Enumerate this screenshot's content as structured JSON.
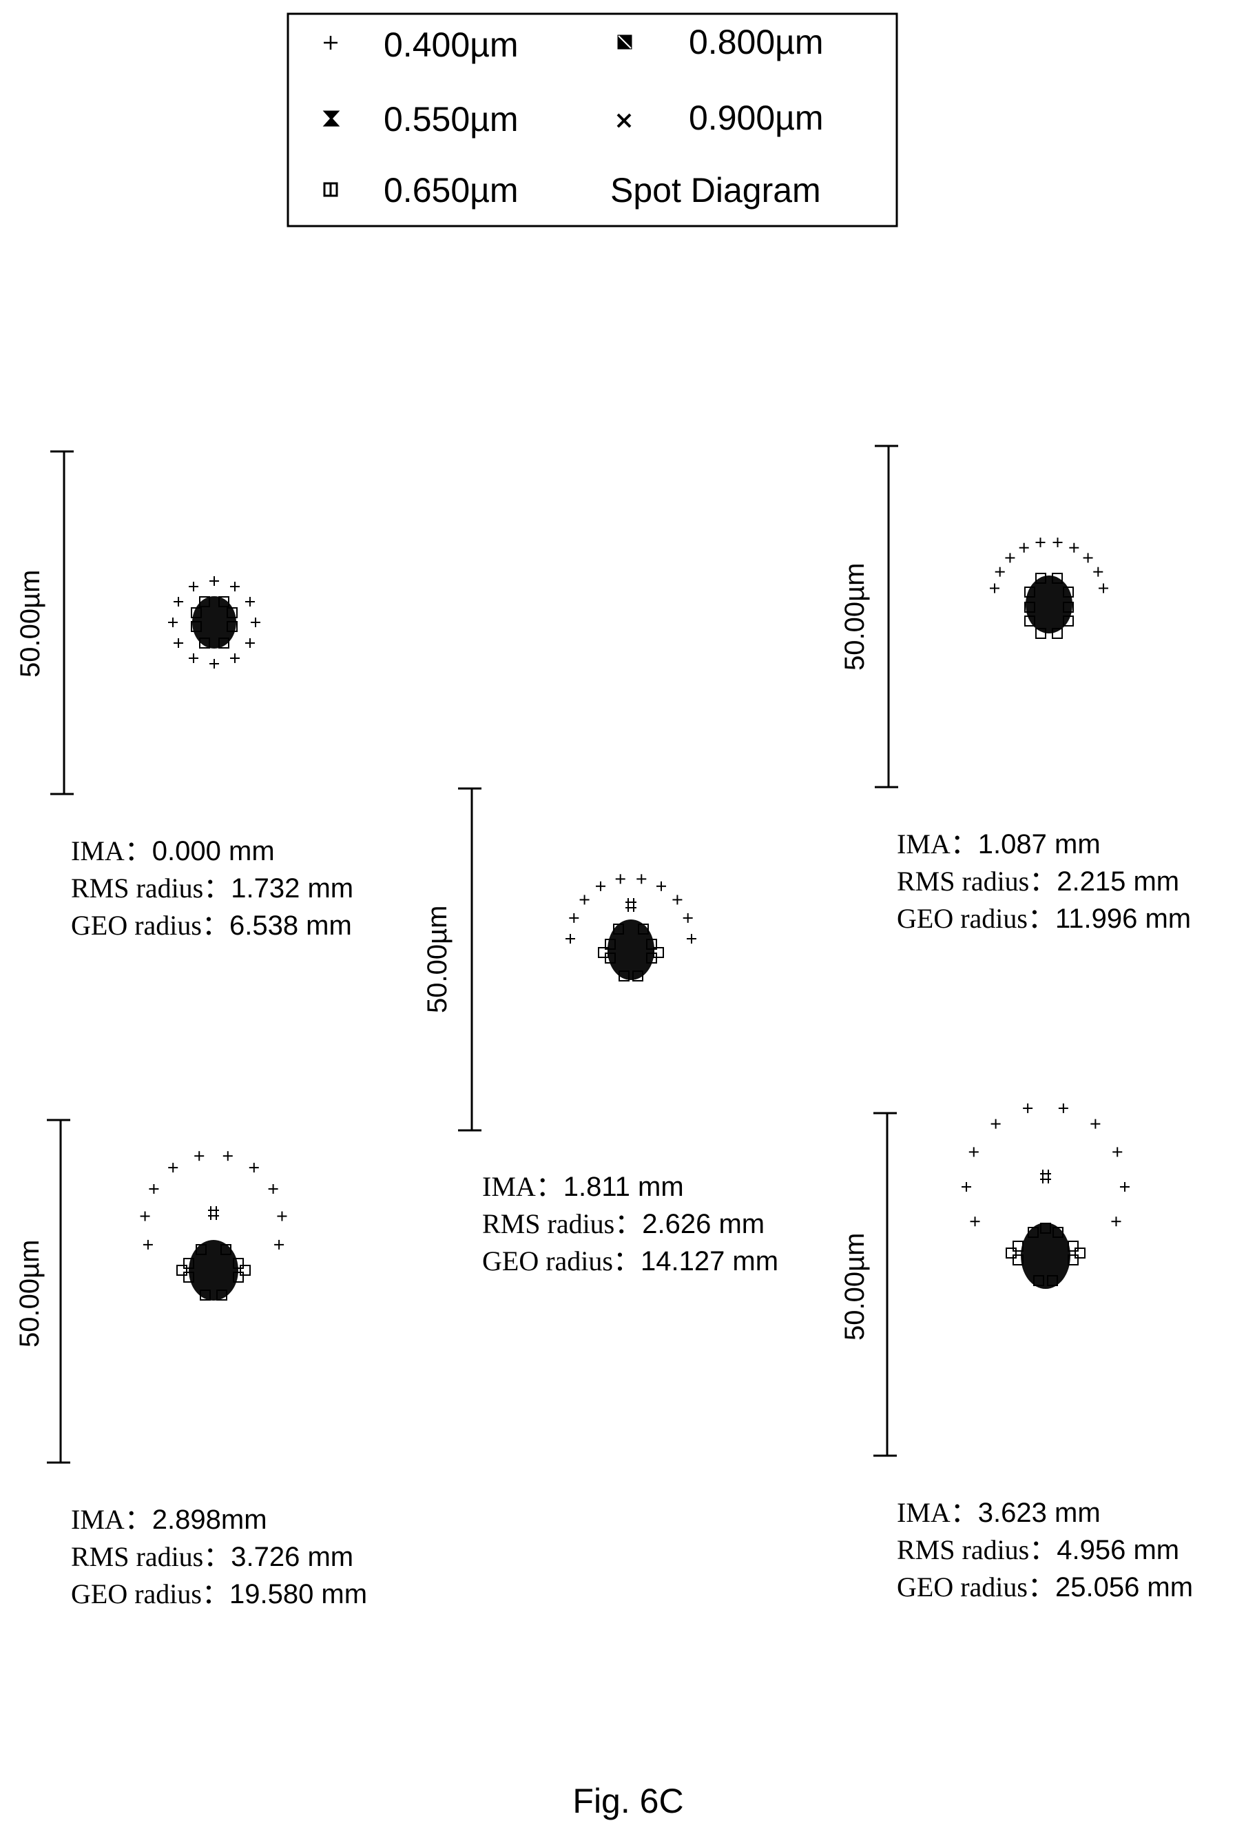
{
  "legend": {
    "entries": [
      {
        "label": "0.400µm",
        "marker": "plus-marker"
      },
      {
        "label": "0.550µm",
        "marker": "hourglass-marker"
      },
      {
        "label": "0.650µm",
        "marker": "square-marker"
      },
      {
        "label": "0.800µm",
        "marker": "filled-square-marker"
      },
      {
        "label": "0.900µm",
        "marker": "x-marker"
      }
    ],
    "title": "Spot Diagram"
  },
  "panels": [
    {
      "scale_label": "50.00µm",
      "ima_key": "IMA",
      "ima_value": "0.000 mm",
      "rms_key": "RMS radius",
      "rms_value": "1.732 mm",
      "geo_key": "GEO radius",
      "geo_value": "6.538 mm"
    },
    {
      "scale_label": "50.00µm",
      "ima_key": "IMA",
      "ima_value": "1.087 mm",
      "rms_key": "RMS radius",
      "rms_value": "2.215 mm",
      "geo_key": "GEO radius",
      "geo_value": "11.996 mm"
    },
    {
      "scale_label": "50.00µm",
      "ima_key": "IMA",
      "ima_value": "1.811 mm",
      "rms_key": "RMS radius",
      "rms_value": "2.626 mm",
      "geo_key": "GEO radius",
      "geo_value": "14.127 mm"
    },
    {
      "scale_label": "50.00µm",
      "ima_key": "IMA",
      "ima_value": "2.898mm",
      "rms_key": "RMS radius",
      "rms_value": "3.726 mm",
      "geo_key": "GEO radius",
      "geo_value": "19.580 mm"
    },
    {
      "scale_label": "50.00µm",
      "ima_key": "IMA",
      "ima_value": "3.623 mm",
      "rms_key": "RMS radius",
      "rms_value": "4.956 mm",
      "geo_key": "GEO radius",
      "geo_value": "25.056 mm"
    }
  ],
  "separator": "：",
  "figure_caption": "Fig. 6C"
}
